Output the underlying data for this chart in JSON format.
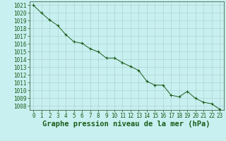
{
  "x": [
    0,
    1,
    2,
    3,
    4,
    5,
    6,
    7,
    8,
    9,
    10,
    11,
    12,
    13,
    14,
    15,
    16,
    17,
    18,
    19,
    20,
    21,
    22,
    23
  ],
  "y": [
    1021.0,
    1020.0,
    1019.1,
    1018.4,
    1017.2,
    1016.3,
    1016.1,
    1015.4,
    1015.0,
    1014.2,
    1014.2,
    1013.6,
    1013.1,
    1012.6,
    1011.2,
    1010.7,
    1010.7,
    1009.4,
    1009.2,
    1009.9,
    1009.0,
    1008.5,
    1008.3,
    1007.6
  ],
  "line_color": "#1a5c1a",
  "marker": "+",
  "bg_color": "#c8f0f0",
  "grid_color": "#aacccc",
  "title": "Graphe pression niveau de la mer (hPa)",
  "ylim_min": 1007.5,
  "ylim_max": 1021.5,
  "xlim_min": -0.5,
  "xlim_max": 23.5,
  "title_fontsize": 7.5,
  "tick_fontsize": 5.5,
  "axis_color": "#1a5c1a",
  "spine_color": "#446644"
}
